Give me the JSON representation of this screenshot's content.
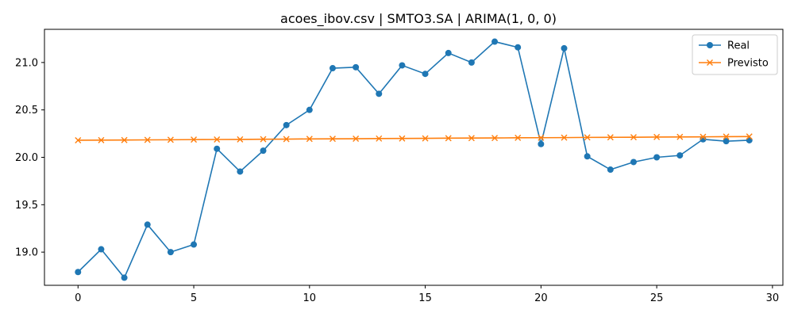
{
  "chart_data": {
    "type": "line",
    "title": "acoes_ibov.csv | SMTO3.SA | ARIMA(1, 0, 0)",
    "xlabel": "",
    "ylabel": "",
    "xlim": [
      -1.45,
      30.45
    ],
    "ylim": [
      18.65,
      21.35
    ],
    "xticks": [
      0,
      5,
      10,
      15,
      20,
      25,
      30
    ],
    "xtick_labels": [
      "0",
      "5",
      "10",
      "15",
      "20",
      "25",
      "30"
    ],
    "yticks": [
      19.0,
      19.5,
      20.0,
      20.5,
      21.0
    ],
    "ytick_labels": [
      "19.0",
      "19.5",
      "20.0",
      "20.5",
      "21.0"
    ],
    "grid": false,
    "legend": "top-right",
    "x": [
      0,
      1,
      2,
      3,
      4,
      5,
      6,
      7,
      8,
      9,
      10,
      11,
      12,
      13,
      14,
      15,
      16,
      17,
      18,
      19,
      20,
      21,
      22,
      23,
      24,
      25,
      26,
      27,
      28,
      29
    ],
    "series": [
      {
        "name": "Real",
        "color": "#1f77b4",
        "marker": "circle",
        "values": [
          18.79,
          19.03,
          18.73,
          19.29,
          19.0,
          19.08,
          20.09,
          19.85,
          20.07,
          20.34,
          20.5,
          20.94,
          20.95,
          20.67,
          20.97,
          20.88,
          21.1,
          21.0,
          21.22,
          21.16,
          20.14,
          21.15,
          20.01,
          19.87,
          19.95,
          20.0,
          20.02,
          20.19,
          20.17,
          20.18
        ]
      },
      {
        "name": "Previsto",
        "color": "#ff7f0e",
        "marker": "x",
        "values": [
          20.18,
          20.181,
          20.182,
          20.184,
          20.185,
          20.187,
          20.188,
          20.189,
          20.191,
          20.192,
          20.194,
          20.195,
          20.196,
          20.198,
          20.199,
          20.2,
          20.202,
          20.203,
          20.204,
          20.206,
          20.207,
          20.208,
          20.21,
          20.211,
          20.212,
          20.214,
          20.215,
          20.216,
          20.218,
          20.219
        ]
      }
    ]
  }
}
